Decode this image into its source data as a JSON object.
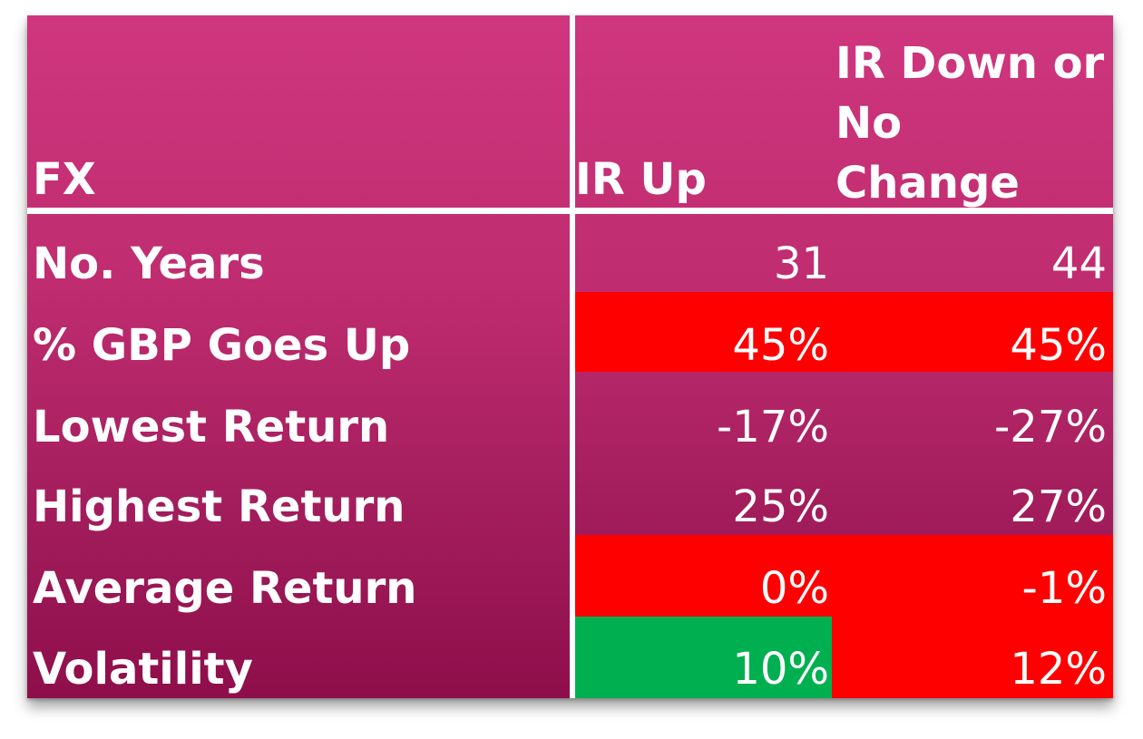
{
  "table": {
    "header": {
      "label": "FX",
      "col1": "IR Up",
      "col2_line1": "IR Down or",
      "col2_line2": "No",
      "col2_line3": "Change"
    },
    "rows": [
      {
        "label": "No. Years",
        "ir_up": "31",
        "ir_down": "44"
      },
      {
        "label": "% GBP Goes Up",
        "ir_up": "45%",
        "ir_down": "45%"
      },
      {
        "label": "Lowest Return",
        "ir_up": "-17%",
        "ir_down": "-27%"
      },
      {
        "label": "Highest Return",
        "ir_up": "25%",
        "ir_down": "27%"
      },
      {
        "label": "Average Return",
        "ir_up": "0%",
        "ir_down": "-1%"
      },
      {
        "label": "Volatility",
        "ir_up": "10%",
        "ir_down": "12%"
      }
    ],
    "colors": {
      "highlight_red": "#ff0000",
      "highlight_green": "#00b050",
      "background_top": "#cf367e",
      "background_bottom": "#8e0e4a"
    }
  }
}
